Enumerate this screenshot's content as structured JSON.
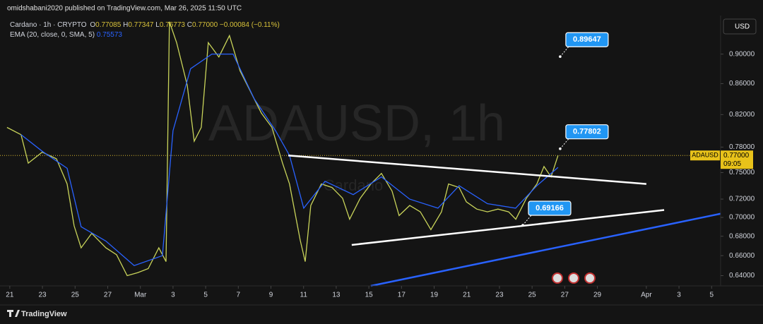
{
  "header": "omidshabani2020 published on TradingView.com, Mar 26, 2025 11:50 UTC",
  "footer": "TradingView",
  "currency_button": "USD",
  "chart_data": {
    "type": "line",
    "watermark": "ADAUSD, 1h",
    "watermark_sub": "Cardano",
    "ohlc": [
      {
        "label": "O",
        "value": "0.77085"
      },
      {
        "label": "H",
        "value": "0.77347"
      },
      {
        "label": "L",
        "value": "0.76773"
      },
      {
        "label": "C",
        "value": "0.77000"
      }
    ],
    "change": "−0.00084 (−0.11%)",
    "ema_value": "0.75573",
    "log_scale": true,
    "xlim": [
      -0.6,
      43.55
    ],
    "ylim": [
      0.63,
      0.955
    ],
    "xticks": [
      {
        "value": 0,
        "label": "21"
      },
      {
        "value": 2,
        "label": "23"
      },
      {
        "value": 4,
        "label": "25"
      },
      {
        "value": 6,
        "label": "27"
      },
      {
        "value": 8,
        "label": "Mar"
      },
      {
        "value": 10,
        "label": "3"
      },
      {
        "value": 12,
        "label": "5"
      },
      {
        "value": 14,
        "label": "7"
      },
      {
        "value": 16,
        "label": "9"
      },
      {
        "value": 18,
        "label": "11"
      },
      {
        "value": 20,
        "label": "13"
      },
      {
        "value": 22,
        "label": "15"
      },
      {
        "value": 24,
        "label": "17"
      },
      {
        "value": 26,
        "label": "19"
      },
      {
        "value": 28,
        "label": "21"
      },
      {
        "value": 30,
        "label": "23"
      },
      {
        "value": 32,
        "label": "25"
      },
      {
        "value": 34,
        "label": "27"
      },
      {
        "value": 36,
        "label": "29"
      },
      {
        "value": 39,
        "label": "Apr"
      },
      {
        "value": 41,
        "label": "3"
      },
      {
        "value": 43,
        "label": "5"
      }
    ],
    "yticks": [
      {
        "value": 0.9,
        "label": "0.90000"
      },
      {
        "value": 0.86,
        "label": "0.86000"
      },
      {
        "value": 0.82,
        "label": "0.82000"
      },
      {
        "value": 0.78,
        "label": "0.78000"
      },
      {
        "value": 0.75,
        "label": "0.75000"
      },
      {
        "value": 0.72,
        "label": "0.72000"
      },
      {
        "value": 0.7,
        "label": "0.70000"
      },
      {
        "value": 0.68,
        "label": "0.68000"
      },
      {
        "value": 0.66,
        "label": "0.66000"
      },
      {
        "value": 0.64,
        "label": "0.64000"
      }
    ],
    "series": [
      {
        "name": "Cardano · 1h · CRYPTO",
        "color": "#c9d45a",
        "x": [
          -0.17,
          0.69,
          1.13,
          1.99,
          2.86,
          3.51,
          3.94,
          4.37,
          5.02,
          5.89,
          6.54,
          7.19,
          7.84,
          8.48,
          9.13,
          9.57,
          9.78,
          10.22,
          10.87,
          11.3,
          11.73,
          12.16,
          12.81,
          13.46,
          14.11,
          14.76,
          15.41,
          16.06,
          16.71,
          17.14,
          17.79,
          18.1,
          18.44,
          19.09,
          19.74,
          20.39,
          20.82,
          21.47,
          22.12,
          22.77,
          23.42,
          23.85,
          24.5,
          25.15,
          25.8,
          26.45,
          26.88,
          27.53,
          27.97,
          28.61,
          29.26,
          29.91,
          30.56,
          31.0,
          31.65,
          32.29,
          32.73,
          33.16,
          33.59
        ],
        "values": [
          0.804,
          0.795,
          0.761,
          0.774,
          0.766,
          0.737,
          0.691,
          0.668,
          0.683,
          0.668,
          0.661,
          0.64,
          0.643,
          0.647,
          0.668,
          0.654,
          0.946,
          0.916,
          0.858,
          0.787,
          0.804,
          0.916,
          0.896,
          0.926,
          0.877,
          0.849,
          0.822,
          0.804,
          0.761,
          0.737,
          0.676,
          0.654,
          0.713,
          0.737,
          0.733,
          0.721,
          0.698,
          0.721,
          0.737,
          0.749,
          0.729,
          0.702,
          0.713,
          0.706,
          0.687,
          0.706,
          0.737,
          0.733,
          0.717,
          0.709,
          0.706,
          0.709,
          0.706,
          0.698,
          0.721,
          0.737,
          0.757,
          0.745,
          0.77
        ]
      },
      {
        "name": "EMA (20, close, 0, SMA, 5)",
        "color": "#2962ff",
        "x": [
          0.69,
          1.99,
          3.51,
          4.37,
          5.89,
          7.62,
          9.35,
          10.0,
          11.08,
          12.38,
          13.68,
          14.98,
          16.28,
          17.14,
          18.01,
          19.31,
          21.04,
          22.77,
          24.5,
          26.23,
          27.53,
          29.26,
          30.99,
          32.29,
          33.59
        ],
        "values": [
          0.795,
          0.775,
          0.755,
          0.69,
          0.675,
          0.65,
          0.66,
          0.8,
          0.88,
          0.9,
          0.9,
          0.84,
          0.8,
          0.77,
          0.71,
          0.74,
          0.725,
          0.745,
          0.72,
          0.71,
          0.735,
          0.715,
          0.71,
          0.735,
          0.756
        ]
      }
    ],
    "trendlines": [
      {
        "color": "#ffffff",
        "x": [
          17.06,
          39.0
        ],
        "values": [
          0.77,
          0.737
        ]
      },
      {
        "color": "#ffffff",
        "x": [
          20.95,
          40.09
        ],
        "values": [
          0.671,
          0.708
        ]
      },
      {
        "color": "#2962ff",
        "x": [
          22.12,
          43.55
        ],
        "values": [
          0.63,
          0.704
        ]
      }
    ],
    "annotations": [
      {
        "x": 33.72,
        "value": 0.89647
      },
      {
        "x": 33.72,
        "value": 0.77802
      },
      {
        "x": 31.43,
        "value": 0.69166
      }
    ],
    "last_price": {
      "symbol": "ADAUSD",
      "value": 0.77,
      "label": "0.77000",
      "countdown": "09:05"
    }
  }
}
